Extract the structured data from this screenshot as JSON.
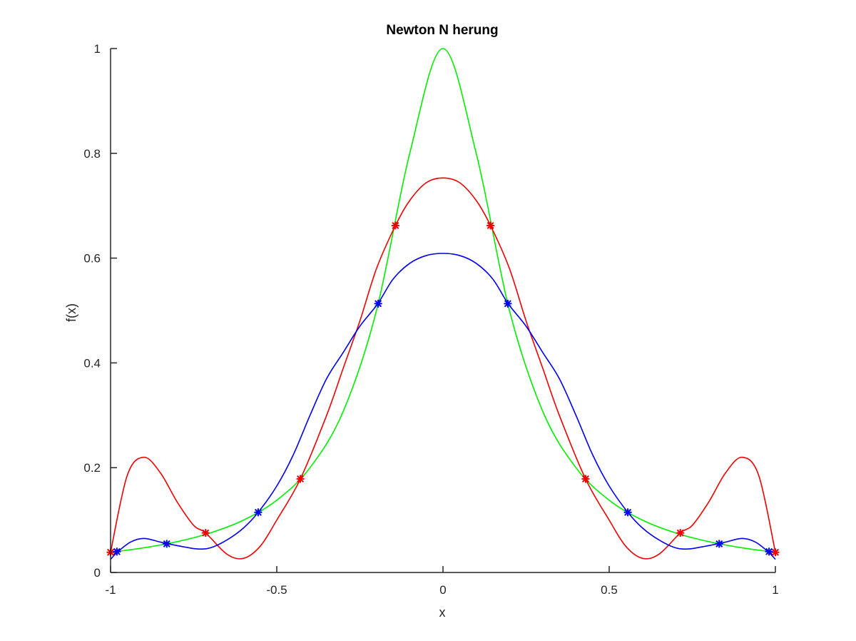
{
  "chart_data": {
    "type": "line",
    "title": "Newton N herung",
    "xlabel": "x",
    "ylabel": "f(x)",
    "xlim": [
      -1,
      1
    ],
    "ylim": [
      0,
      1
    ],
    "grid": false,
    "legend": "none",
    "x_ticks": [
      -1,
      -0.5,
      0,
      0.5,
      1
    ],
    "x_tick_labels": [
      "-1",
      "-0.5",
      "0",
      "0.5",
      "1"
    ],
    "y_ticks": [
      0,
      0.2,
      0.4,
      0.6,
      0.8,
      1
    ],
    "y_tick_labels": [
      "0",
      "0.2",
      "0.4",
      "0.6",
      "0.8",
      "1"
    ],
    "series": [
      {
        "color": "#00ee00",
        "kind": "curve",
        "x": [
          -1,
          -0.9,
          -0.8,
          -0.7,
          -0.6,
          -0.5,
          -0.4,
          -0.3,
          -0.2,
          -0.1,
          0,
          0.1,
          0.2,
          0.3,
          0.4,
          0.5,
          0.6,
          0.7,
          0.8,
          0.9,
          1
        ],
        "y": [
          0.0385,
          0.0471,
          0.0588,
          0.0755,
          0.1,
          0.1379,
          0.2,
          0.3077,
          0.5,
          0.8,
          1,
          0.8,
          0.5,
          0.3077,
          0.2,
          0.1379,
          0.1,
          0.0755,
          0.0588,
          0.0471,
          0.0385
        ]
      },
      {
        "color": "#ee0000",
        "kind": "interpolant",
        "x": [
          -1,
          -0.95,
          -0.9,
          -0.85,
          -0.8,
          -0.75,
          -0.714,
          -0.65,
          -0.6,
          -0.55,
          -0.5,
          -0.429,
          -0.35,
          -0.3,
          -0.25,
          -0.2,
          -0.143,
          -0.1,
          -0.05,
          0,
          0.05,
          0.1,
          0.143,
          0.2,
          0.25,
          0.3,
          0.35,
          0.429,
          0.5,
          0.55,
          0.6,
          0.65,
          0.714,
          0.75,
          0.8,
          0.85,
          0.9,
          0.95,
          1
        ],
        "y": [
          0.0385,
          0.185,
          0.22,
          0.19,
          0.135,
          0.09,
          0.0755,
          0.035,
          0.027,
          0.05,
          0.1,
          0.1786,
          0.3,
          0.39,
          0.48,
          0.58,
          0.6622,
          0.71,
          0.744,
          0.753,
          0.744,
          0.71,
          0.6622,
          0.58,
          0.48,
          0.39,
          0.3,
          0.1786,
          0.1,
          0.05,
          0.027,
          0.035,
          0.0755,
          0.09,
          0.135,
          0.19,
          0.22,
          0.185,
          0.0385
        ]
      },
      {
        "color": "#0000ee",
        "kind": "interpolant",
        "x": [
          -1,
          -0.98,
          -0.94,
          -0.9,
          -0.85,
          -0.83,
          -0.78,
          -0.74,
          -0.7,
          -0.65,
          -0.6,
          -0.556,
          -0.5,
          -0.45,
          -0.4,
          -0.35,
          -0.3,
          -0.25,
          -0.196,
          -0.15,
          -0.1,
          -0.05,
          0,
          0.05,
          0.1,
          0.15,
          0.196,
          0.25,
          0.3,
          0.35,
          0.4,
          0.45,
          0.5,
          0.556,
          0.6,
          0.65,
          0.7,
          0.74,
          0.78,
          0.83,
          0.85,
          0.9,
          0.94,
          0.98,
          1
        ],
        "y": [
          0.025,
          0.0385,
          0.058,
          0.065,
          0.058,
          0.0551,
          0.049,
          0.045,
          0.047,
          0.062,
          0.085,
          0.1148,
          0.165,
          0.225,
          0.3,
          0.37,
          0.42,
          0.47,
          0.5131,
          0.56,
          0.59,
          0.605,
          0.609,
          0.605,
          0.59,
          0.56,
          0.5131,
          0.47,
          0.42,
          0.37,
          0.3,
          0.225,
          0.165,
          0.1148,
          0.085,
          0.062,
          0.047,
          0.045,
          0.049,
          0.0551,
          0.058,
          0.065,
          0.058,
          0.0385,
          0.025
        ]
      }
    ],
    "markers": [
      {
        "color": "#ee0000",
        "symbol": "*",
        "x": [
          -1,
          -0.714,
          -0.429,
          -0.143,
          0.143,
          0.429,
          0.714,
          1
        ],
        "y": [
          0.0385,
          0.0755,
          0.1786,
          0.6622,
          0.6622,
          0.1786,
          0.0755,
          0.0385
        ]
      },
      {
        "color": "#0000ee",
        "symbol": "*",
        "x": [
          -0.981,
          -0.831,
          -0.556,
          -0.195,
          0.195,
          0.556,
          0.831,
          0.981
        ],
        "y": [
          0.0398,
          0.0547,
          0.1148,
          0.5131,
          0.5131,
          0.1148,
          0.0547,
          0.0398
        ]
      }
    ]
  }
}
